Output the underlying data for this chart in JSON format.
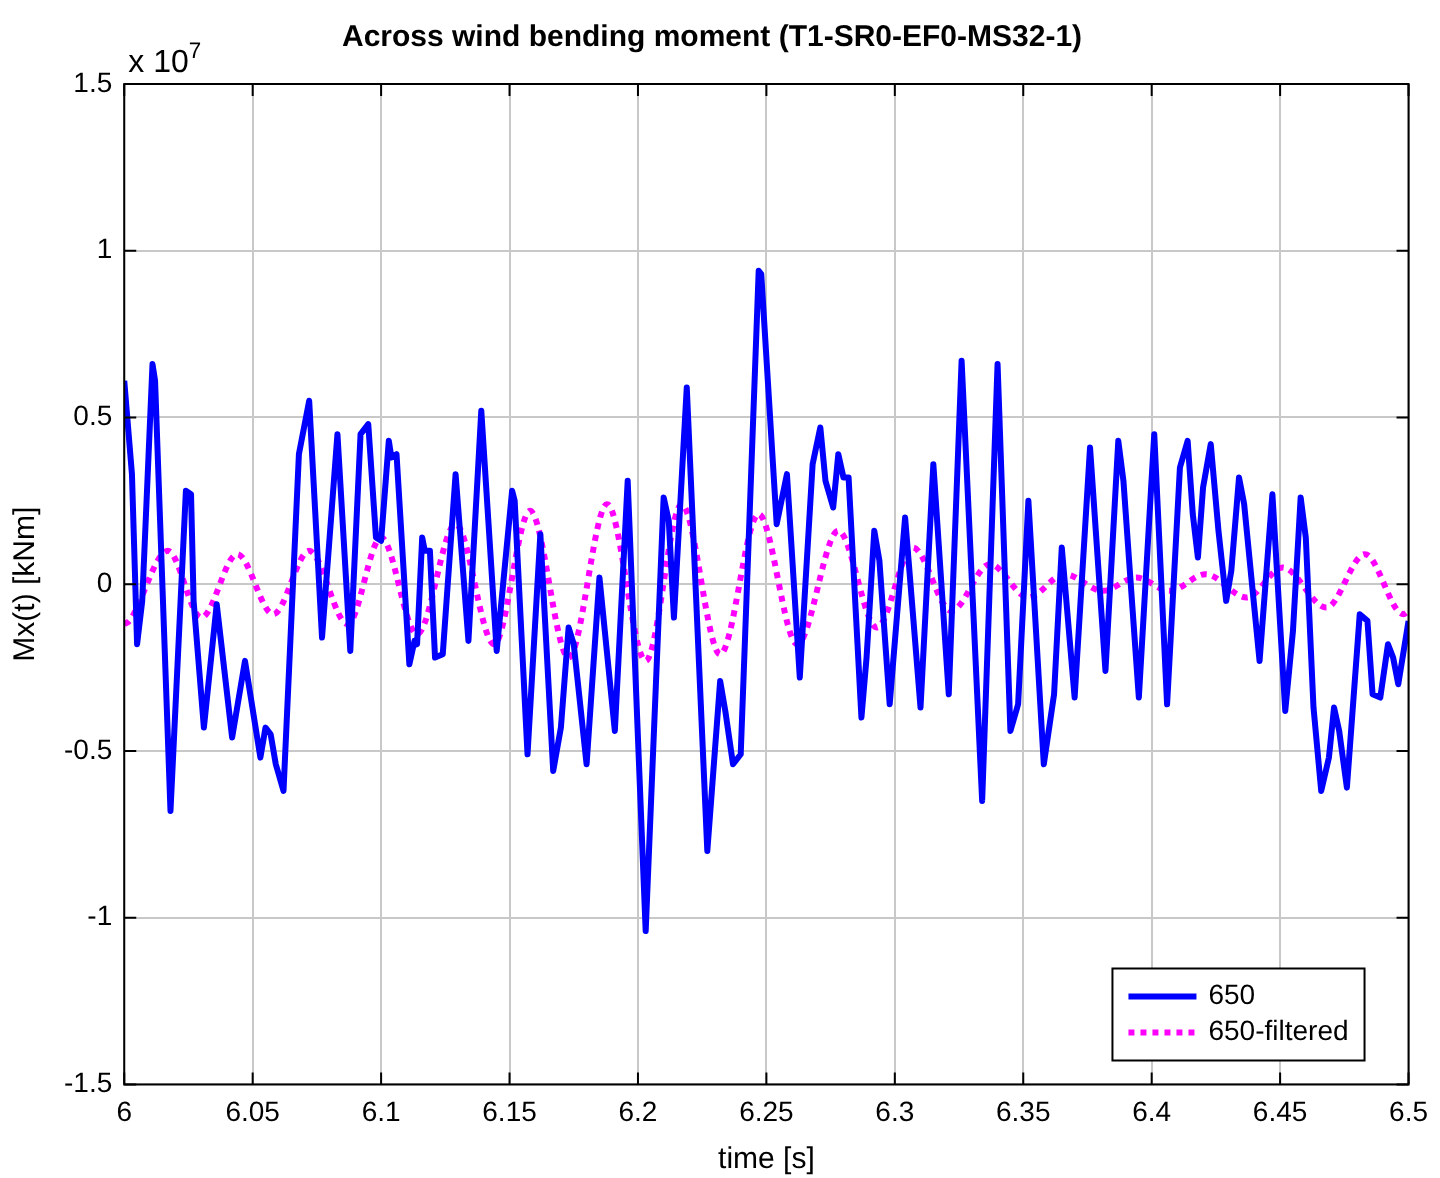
{
  "chart_data": {
    "type": "line",
    "title": "Across wind bending moment (T1-SR0-EF0-MS32-1)",
    "xlabel": "time [s]",
    "ylabel": "Mx(t) [kNm]",
    "annotations": [
      "x 10$^{7}$"
    ],
    "xlim": [
      6,
      6.5
    ],
    "xticks": [
      6,
      6.05,
      6.1,
      6.15,
      6.2,
      6.25,
      6.3,
      6.35,
      6.4,
      6.45,
      6.5
    ],
    "ylim": [
      -1.5,
      1.5
    ],
    "yticks": [
      -1.5,
      -1,
      -0.5,
      0,
      0.5,
      1,
      1.5
    ],
    "grid": true,
    "legend": "bottom right",
    "marker": "none",
    "series": [
      {
        "name": "650",
        "color": "#0000ff",
        "line_style": "solid",
        "x": [
          6.0,
          6.003,
          6.005,
          6.007,
          6.011,
          6.012,
          6.018,
          6.02,
          6.024,
          6.026,
          6.027,
          6.031,
          6.036,
          6.042,
          6.047,
          6.053,
          6.055,
          6.057,
          6.059,
          6.062,
          6.068,
          6.072,
          6.077,
          6.083,
          6.088,
          6.092,
          6.095,
          6.098,
          6.1,
          6.103,
          6.104,
          6.106,
          6.111,
          6.113,
          6.114,
          6.116,
          6.117,
          6.119,
          6.121,
          6.124,
          6.129,
          6.134,
          6.139,
          6.145,
          6.151,
          6.152,
          6.157,
          6.162,
          6.167,
          6.17,
          6.173,
          6.175,
          6.18,
          6.185,
          6.191,
          6.196,
          6.203,
          6.21,
          6.212,
          6.214,
          6.219,
          6.227,
          6.232,
          6.234,
          6.237,
          6.24,
          6.247,
          6.248,
          6.254,
          6.258,
          6.263,
          6.268,
          6.271,
          6.273,
          6.276,
          6.278,
          6.28,
          6.282,
          6.287,
          6.289,
          6.292,
          6.294,
          6.298,
          6.304,
          6.31,
          6.315,
          6.321,
          6.326,
          6.334,
          6.34,
          6.345,
          6.348,
          6.352,
          6.358,
          6.362,
          6.365,
          6.37,
          6.376,
          6.382,
          6.387,
          6.389,
          6.395,
          6.401,
          6.406,
          6.411,
          6.414,
          6.416,
          6.418,
          6.42,
          6.423,
          6.426,
          6.429,
          6.431,
          6.434,
          6.436,
          6.442,
          6.447,
          6.452,
          6.455,
          6.458,
          6.46,
          6.463,
          6.466,
          6.469,
          6.471,
          6.473,
          6.476,
          6.481,
          6.484,
          6.486,
          6.489,
          6.492,
          6.494,
          6.496,
          6.5
        ],
        "values": [
          0.61,
          0.33,
          -0.18,
          -0.05,
          0.66,
          0.61,
          -0.68,
          -0.36,
          0.28,
          0.27,
          -0.05,
          -0.43,
          -0.06,
          -0.46,
          -0.23,
          -0.52,
          -0.43,
          -0.45,
          -0.54,
          -0.62,
          0.39,
          0.55,
          -0.16,
          0.45,
          -0.2,
          0.45,
          0.48,
          0.14,
          0.13,
          0.43,
          0.38,
          0.39,
          -0.24,
          -0.17,
          -0.18,
          0.14,
          0.1,
          0.1,
          -0.22,
          -0.21,
          0.33,
          -0.17,
          0.52,
          -0.2,
          0.28,
          0.25,
          -0.51,
          0.15,
          -0.56,
          -0.43,
          -0.13,
          -0.18,
          -0.54,
          0.02,
          -0.44,
          0.31,
          -1.04,
          0.26,
          0.19,
          -0.1,
          0.59,
          -0.8,
          -0.29,
          -0.38,
          -0.54,
          -0.51,
          0.94,
          0.93,
          0.18,
          0.33,
          -0.28,
          0.36,
          0.47,
          0.31,
          0.23,
          0.39,
          0.32,
          0.32,
          -0.4,
          -0.22,
          0.16,
          0.07,
          -0.36,
          0.2,
          -0.37,
          0.36,
          -0.33,
          0.67,
          -0.65,
          0.66,
          -0.44,
          -0.36,
          0.25,
          -0.54,
          -0.33,
          0.11,
          -0.34,
          0.41,
          -0.26,
          0.43,
          0.31,
          -0.34,
          0.45,
          -0.36,
          0.35,
          0.43,
          0.21,
          0.08,
          0.29,
          0.42,
          0.16,
          -0.05,
          0.04,
          0.32,
          0.24,
          -0.23,
          0.27,
          -0.38,
          -0.14,
          0.26,
          0.14,
          -0.37,
          -0.62,
          -0.52,
          -0.37,
          -0.44,
          -0.61,
          -0.09,
          -0.11,
          -0.33,
          -0.34,
          -0.18,
          -0.22,
          -0.3,
          -0.11
        ]
      },
      {
        "name": "650-filtered",
        "color": "#ff00ff",
        "line_style": "dotted",
        "x": [
          6.0,
          6.002,
          6.017,
          6.03,
          6.044,
          6.058,
          6.072,
          6.087,
          6.1,
          6.114,
          6.129,
          6.144,
          6.158,
          6.173,
          6.188,
          6.203,
          6.217,
          6.232,
          6.247,
          6.262,
          6.278,
          6.293,
          6.307,
          6.322,
          6.337,
          6.352,
          6.366,
          6.381,
          6.394,
          6.407,
          6.421,
          6.437,
          6.451,
          6.468,
          6.483,
          6.498,
          6.5
        ],
        "values": [
          -0.12,
          -0.11,
          0.1,
          -0.1,
          0.09,
          -0.09,
          0.1,
          -0.12,
          0.14,
          -0.15,
          0.18,
          -0.18,
          0.22,
          -0.22,
          0.24,
          -0.23,
          0.24,
          -0.21,
          0.21,
          -0.18,
          0.16,
          -0.13,
          0.11,
          -0.08,
          0.06,
          -0.04,
          0.03,
          -0.02,
          0.02,
          -0.02,
          0.03,
          -0.04,
          0.05,
          -0.07,
          0.09,
          -0.09,
          -0.08
        ]
      }
    ]
  }
}
